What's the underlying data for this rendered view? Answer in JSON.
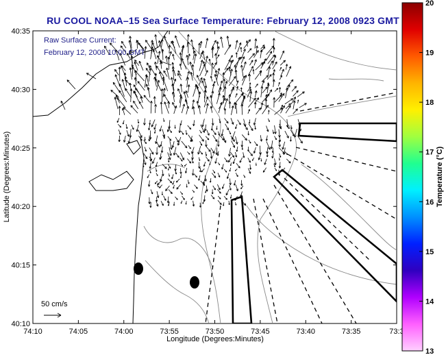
{
  "title": "RU COOL  NOAA–15  Sea Surface Temperature:  February 12, 2008 0923 GMT",
  "legend": {
    "line1": "Raw Surface Current:",
    "line2": "February 12, 2008 10:00 GMT"
  },
  "scale_label": "50 cm/s",
  "colorbar": {
    "label": "Temperature (°C)",
    "ticks": [
      "20",
      "19",
      "18",
      "17",
      "16",
      "15",
      "14",
      "13"
    ],
    "colors": [
      "#8b0000",
      "#e00000",
      "#ff5a00",
      "#ffb400",
      "#fff000",
      "#a0ff40",
      "#20ff90",
      "#00f0ff",
      "#0090ff",
      "#0020ff",
      "#3000c0",
      "#b000ff",
      "#ff60ff",
      "#ffd0ff"
    ]
  },
  "axes": {
    "xlabel": "Longitude (Degrees:Minutes)",
    "ylabel": "Latitude (Degrees:Minutes)",
    "xticks": [
      "74:10",
      "74:05",
      "74:00",
      "73:55",
      "73:50",
      "73:45",
      "73:40",
      "73:35",
      "73:3"
    ],
    "yticks": [
      "40:35",
      "40:30",
      "40:25",
      "40:20",
      "40:15",
      "40:10"
    ]
  }
}
